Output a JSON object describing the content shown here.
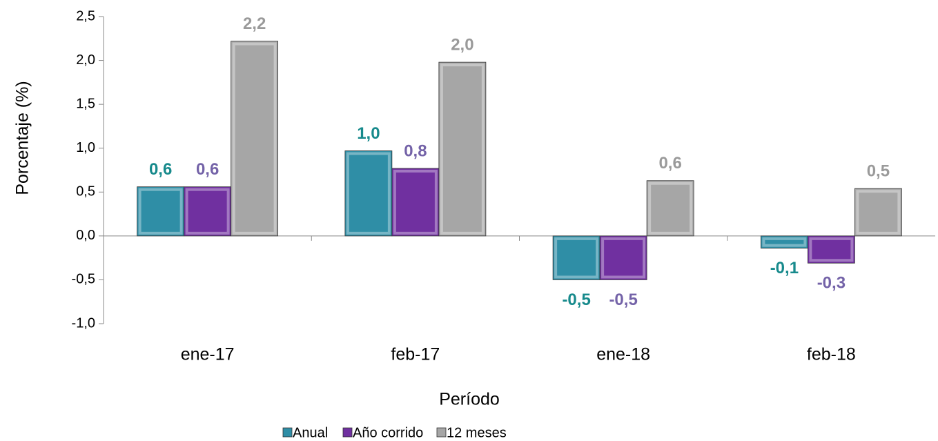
{
  "chart_data": {
    "type": "bar",
    "ylabel": "Porcentaje (%)",
    "xlabel": "Período",
    "categories": [
      "ene-17",
      "feb-17",
      "ene-18",
      "feb-18"
    ],
    "series": [
      {
        "name": "Anual",
        "color": "#2f8ea6",
        "label_color": "#178a8c",
        "values": [
          0.56,
          0.97,
          -0.5,
          -0.14
        ],
        "value_labels": [
          "0,6",
          "1,0",
          "-0,5",
          "-0,1"
        ]
      },
      {
        "name": "Año corrido",
        "color": "#7030a0",
        "label_color": "#7463a8",
        "values": [
          0.56,
          0.77,
          -0.5,
          -0.31
        ],
        "value_labels": [
          "0,6",
          "0,8",
          "-0,5",
          "-0,3"
        ]
      },
      {
        "name": "12 meses",
        "color": "#a6a6a6",
        "label_color": "#9a9a9a",
        "values": [
          2.22,
          1.98,
          0.63,
          0.54
        ],
        "value_labels": [
          "2,2",
          "2,0",
          "0,6",
          "0,5"
        ]
      }
    ],
    "ylim": [
      -1.0,
      2.5
    ],
    "yticks": [
      {
        "value": -1.0,
        "label": "-1,0"
      },
      {
        "value": -0.5,
        "label": "-0,5"
      },
      {
        "value": 0,
        "label": "0,0"
      },
      {
        "value": 0.5,
        "label": "0,5"
      },
      {
        "value": 1.0,
        "label": "1,0"
      },
      {
        "value": 1.5,
        "label": "1,5"
      },
      {
        "value": 2.0,
        "label": "2,0"
      },
      {
        "value": 2.5,
        "label": "2,5"
      }
    ],
    "grid": false,
    "legend": "bottom"
  }
}
